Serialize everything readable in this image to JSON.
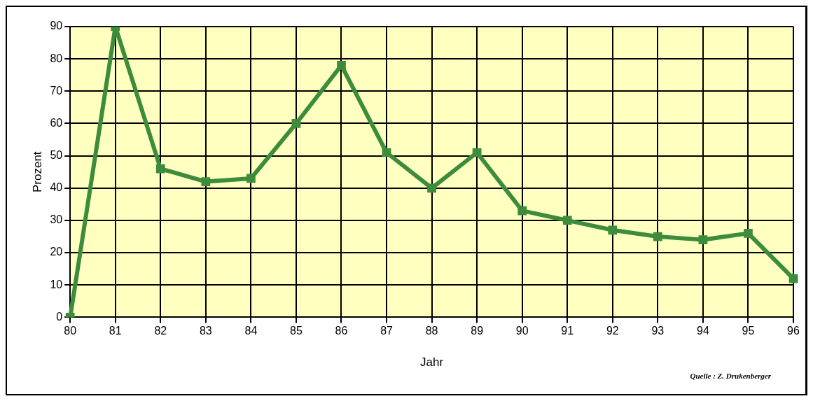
{
  "chart_data": {
    "type": "line",
    "xlabel": "Jahr",
    "ylabel": "Prozent",
    "categories": [
      "80",
      "81",
      "82",
      "83",
      "84",
      "85",
      "86",
      "87",
      "88",
      "89",
      "90",
      "91",
      "92",
      "93",
      "94",
      "95",
      "96"
    ],
    "series": [
      {
        "color": "#3c8c3c",
        "values": [
          0,
          90,
          46,
          42,
          43,
          60,
          78,
          51,
          40,
          51,
          33,
          30,
          27,
          25,
          24,
          26,
          12
        ]
      }
    ],
    "ylim": [
      0,
      90
    ],
    "yticks": [
      0,
      10,
      20,
      30,
      40,
      50,
      60,
      70,
      80,
      90
    ],
    "grid": true,
    "marker": "square",
    "line_style": "solid",
    "legend": false,
    "annotations": [
      "Quelle : Z. Drukenberger"
    ]
  }
}
